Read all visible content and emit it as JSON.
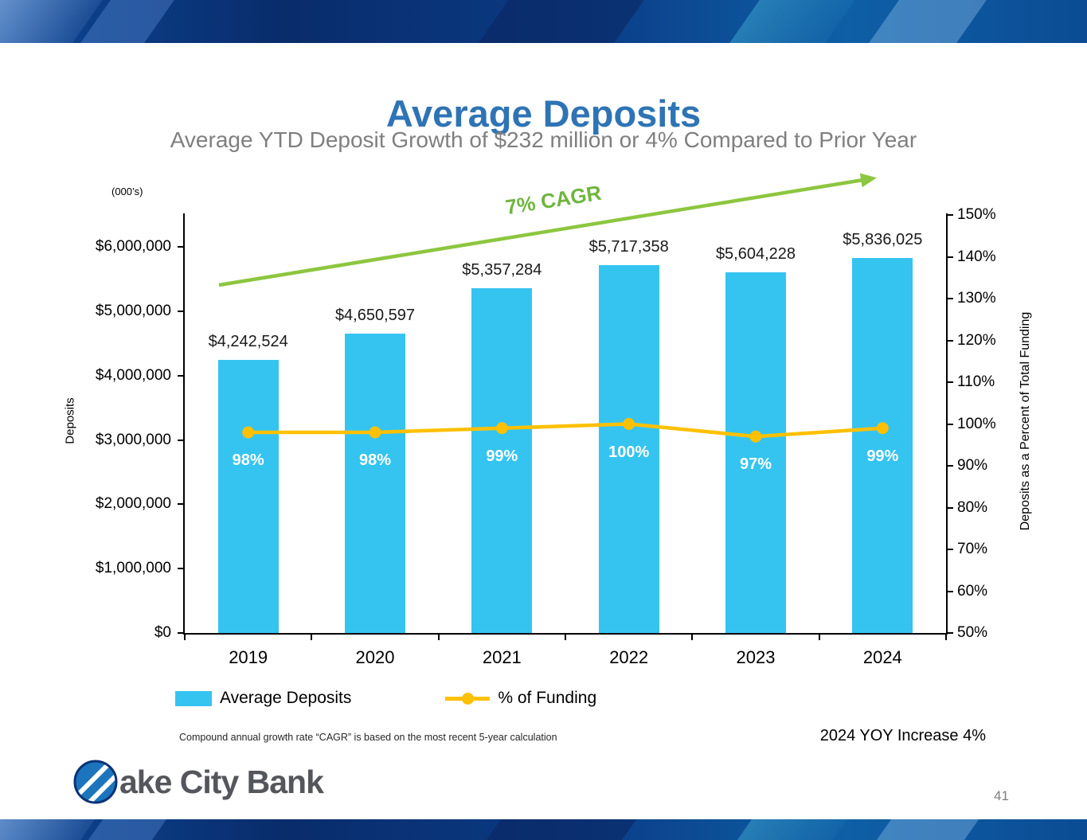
{
  "slide": {
    "title": "Average Deposits",
    "subtitle": "Average YTD Deposit Growth of $232 million or 4% Compared to Prior Year",
    "footnote": "Compound annual growth rate “CAGR” is based on the most recent 5-year calculation",
    "yoy_note": "2024 YOY Increase 4%",
    "page_number": "41",
    "logo_text": "ake City Bank"
  },
  "chart_data": {
    "type": "bar",
    "combo": "bar+line",
    "grid": false,
    "units_label": "(000’s)",
    "categories": [
      "2019",
      "2020",
      "2021",
      "2022",
      "2023",
      "2024"
    ],
    "series": [
      {
        "name": "Average Deposits",
        "type": "bar",
        "axis": "left",
        "color": "#35C4F0",
        "values": [
          4242524,
          4650597,
          5357284,
          5717358,
          5604228,
          5836025
        ],
        "labels": [
          "$4,242,524",
          "$4,650,597",
          "$5,357,284",
          "$5,717,358",
          "$5,604,228",
          "$5,836,025"
        ]
      },
      {
        "name": "% of Funding",
        "type": "line",
        "axis": "right",
        "color": "#FFC000",
        "values": [
          98,
          98,
          99,
          100,
          97,
          99
        ],
        "labels": [
          "98%",
          "98%",
          "99%",
          "100%",
          "97%",
          "99%"
        ]
      }
    ],
    "left_axis": {
      "label": "Deposits",
      "min": 0,
      "max": 6500000,
      "ticks": [
        {
          "value": 0,
          "label": "$0"
        },
        {
          "value": 1000000,
          "label": "$1,000,000"
        },
        {
          "value": 2000000,
          "label": "$2,000,000"
        },
        {
          "value": 3000000,
          "label": "$3,000,000"
        },
        {
          "value": 4000000,
          "label": "$4,000,000"
        },
        {
          "value": 5000000,
          "label": "$5,000,000"
        },
        {
          "value": 6000000,
          "label": "$6,000,000"
        }
      ]
    },
    "right_axis": {
      "label": "Deposits as a Percent of Total Funding",
      "min": 50,
      "max": 150,
      "ticks": [
        {
          "value": 50,
          "label": "50%"
        },
        {
          "value": 60,
          "label": "60%"
        },
        {
          "value": 70,
          "label": "70%"
        },
        {
          "value": 80,
          "label": "80%"
        },
        {
          "value": 90,
          "label": "90%"
        },
        {
          "value": 100,
          "label": "100%"
        },
        {
          "value": 110,
          "label": "110%"
        },
        {
          "value": 120,
          "label": "120%"
        },
        {
          "value": 130,
          "label": "130%"
        },
        {
          "value": 140,
          "label": "140%"
        },
        {
          "value": 150,
          "label": "150%"
        }
      ]
    },
    "annotation": {
      "text": "7% CAGR",
      "color": "#6FB53F",
      "arrow_color": "#8DC63F"
    },
    "legend": {
      "position": "bottom",
      "items": [
        "Average Deposits",
        "% of Funding"
      ]
    }
  },
  "colors": {
    "title": "#2E74B5",
    "subtitle": "#7F7F7F",
    "banner_navy": "#0A3277",
    "bar": "#35C4F0",
    "line": "#FFC000",
    "arrow": "#8DC63F"
  }
}
